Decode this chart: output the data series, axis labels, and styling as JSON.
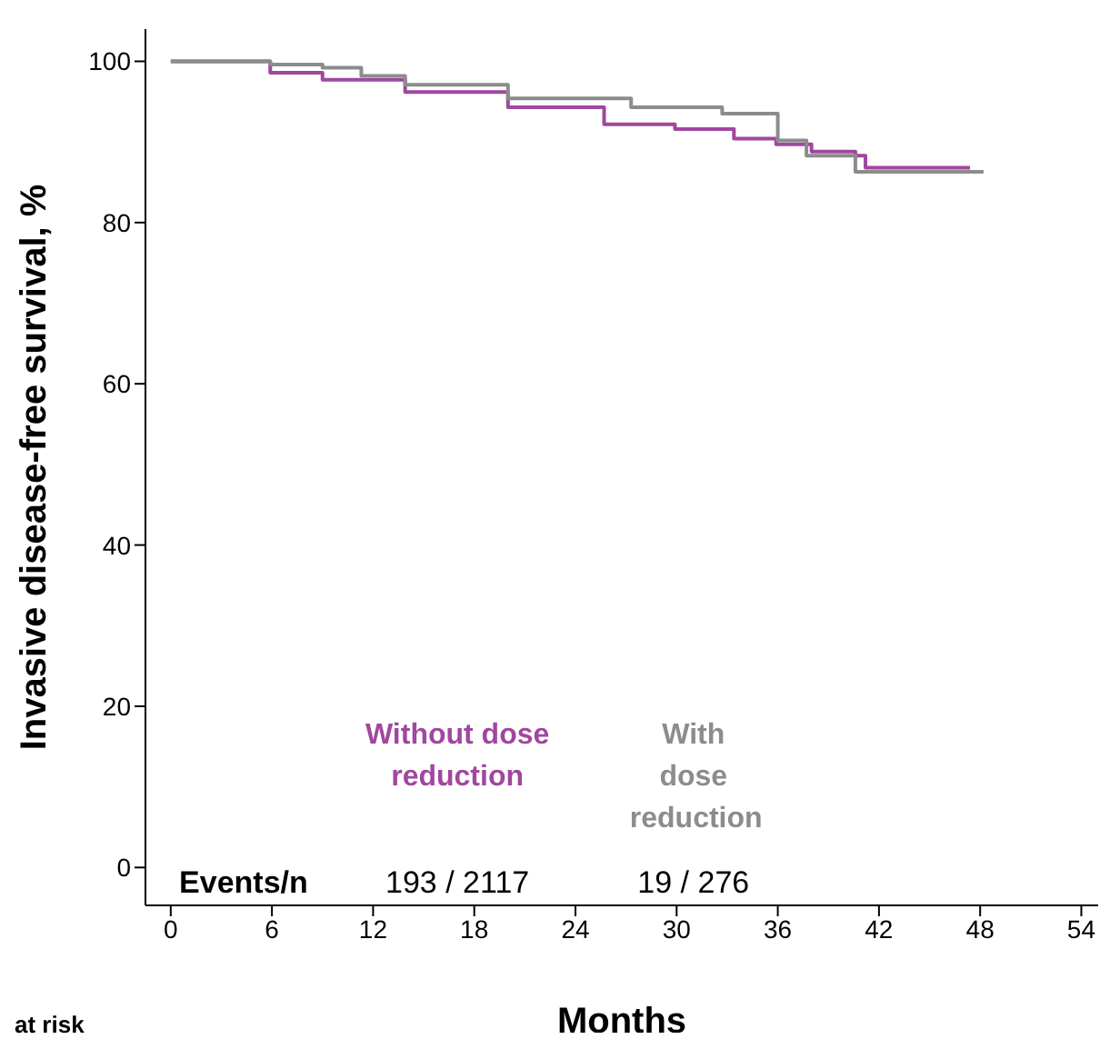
{
  "chart_data": {
    "type": "step",
    "xlabel": "Months",
    "ylabel": "Invasive disease-free survival, %",
    "xlim": [
      -1.5,
      55
    ],
    "xticks": [
      0,
      6,
      12,
      18,
      24,
      30,
      36,
      42,
      48,
      54
    ],
    "ylim": [
      -4.7,
      104
    ],
    "yticks": [
      0,
      20,
      40,
      60,
      80,
      100
    ],
    "grid": false,
    "legend": false,
    "marker": "none",
    "line_style": "solid",
    "series": [
      {
        "name": "Without dose reduction",
        "color": "#a0479f",
        "x": [
          0,
          5.9,
          9,
          13.9,
          20,
          25.7,
          29.9,
          33.4,
          35.9,
          38,
          40.6,
          41.2,
          47.4
        ],
        "values": [
          100,
          98.6,
          97.7,
          96.2,
          94.3,
          92.2,
          91.6,
          90.4,
          89.7,
          88.8,
          88.3,
          86.8,
          86.8
        ]
      },
      {
        "name": "With dose reduction",
        "color": "#8c8c8c",
        "x": [
          0,
          5.9,
          9,
          11.3,
          13.9,
          20,
          27.3,
          32.7,
          36,
          37.7,
          40.6,
          48.2
        ],
        "values": [
          100,
          99.6,
          99.2,
          98.2,
          97.1,
          95.4,
          94.3,
          93.5,
          90.2,
          88.3,
          86.3,
          86.3
        ]
      }
    ],
    "annotations": [
      "Events/n",
      "193 / 2117",
      "19 / 276",
      "at risk"
    ]
  }
}
